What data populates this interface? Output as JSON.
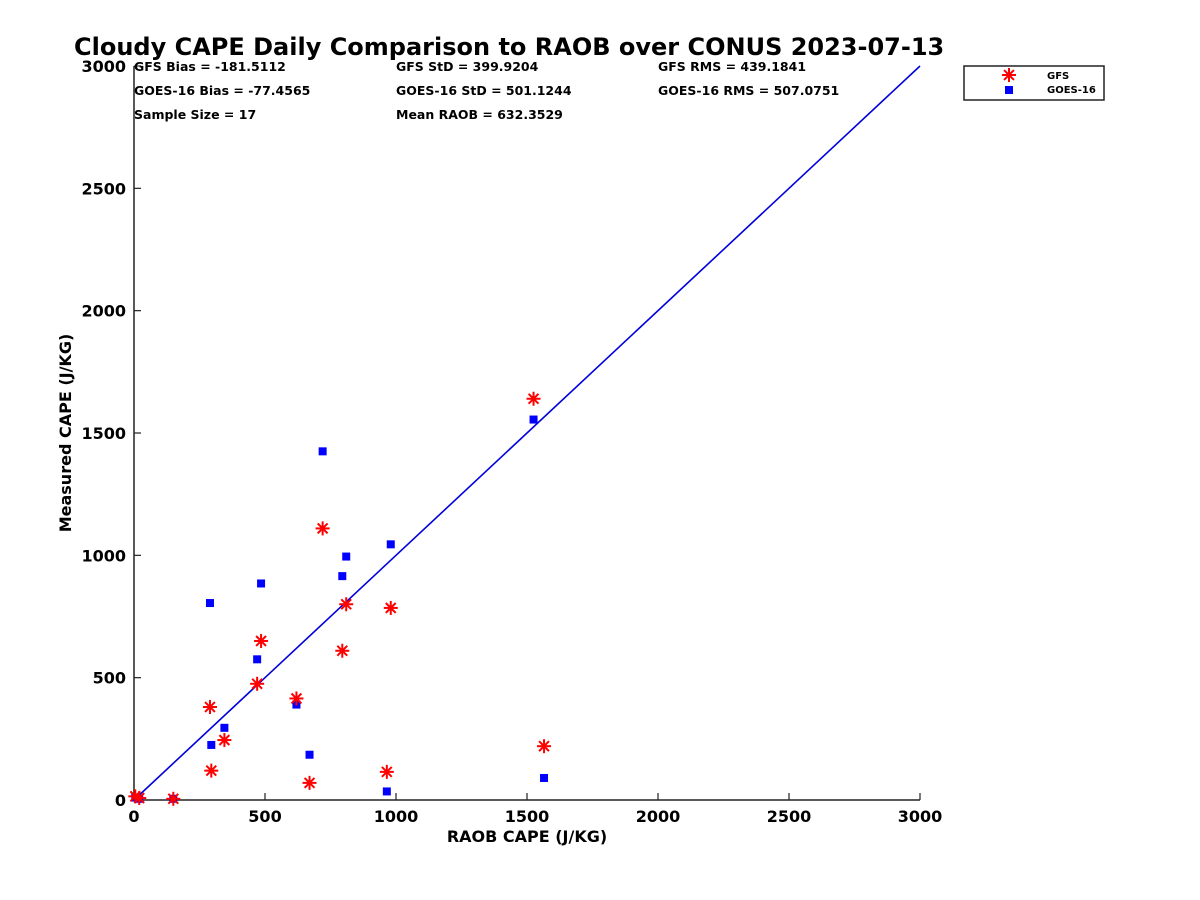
{
  "chart_data": {
    "type": "scatter",
    "title": "Cloudy CAPE Daily Comparison to RAOB over CONUS 2023-07-13",
    "xlabel": "RAOB CAPE (J/KG)",
    "ylabel": "Measured CAPE (J/KG)",
    "xlim": [
      0,
      3000
    ],
    "ylim": [
      0,
      3000
    ],
    "xticks": [
      0,
      500,
      1000,
      1500,
      2000,
      2500,
      3000
    ],
    "yticks": [
      0,
      500,
      1000,
      1500,
      2000,
      2500,
      3000
    ],
    "grid": false,
    "legend_position": "top-right",
    "one_to_one_line": {
      "x": [
        0,
        3000
      ],
      "y": [
        0,
        3000
      ],
      "color": "#0000dd"
    },
    "series": [
      {
        "name": "GFS",
        "marker": "asterisk",
        "color": "#ff0000",
        "x": [
          5,
          20,
          150,
          290,
          295,
          345,
          470,
          485,
          620,
          670,
          720,
          795,
          810,
          965,
          980,
          1525,
          1565
        ],
        "y": [
          15,
          8,
          5,
          380,
          120,
          245,
          475,
          650,
          415,
          70,
          1110,
          610,
          800,
          115,
          785,
          1640,
          220
        ]
      },
      {
        "name": "GOES-16",
        "marker": "square",
        "color": "#0000ff",
        "x": [
          5,
          20,
          150,
          290,
          295,
          345,
          470,
          485,
          620,
          670,
          720,
          795,
          810,
          965,
          980,
          1525,
          1565
        ],
        "y": [
          10,
          5,
          5,
          805,
          225,
          295,
          575,
          885,
          390,
          185,
          1425,
          915,
          995,
          35,
          1045,
          1555,
          90
        ]
      }
    ],
    "stats": [
      [
        "GFS Bias = -181.5112",
        "GFS StD = 399.9204",
        "GFS RMS = 439.1841"
      ],
      [
        "GOES-16 Bias = -77.4565",
        "GOES-16 StD = 501.1244",
        "GOES-16 RMS = 507.0751"
      ],
      [
        "Sample Size = 17",
        "Mean RAOB = 632.3529",
        ""
      ]
    ]
  }
}
